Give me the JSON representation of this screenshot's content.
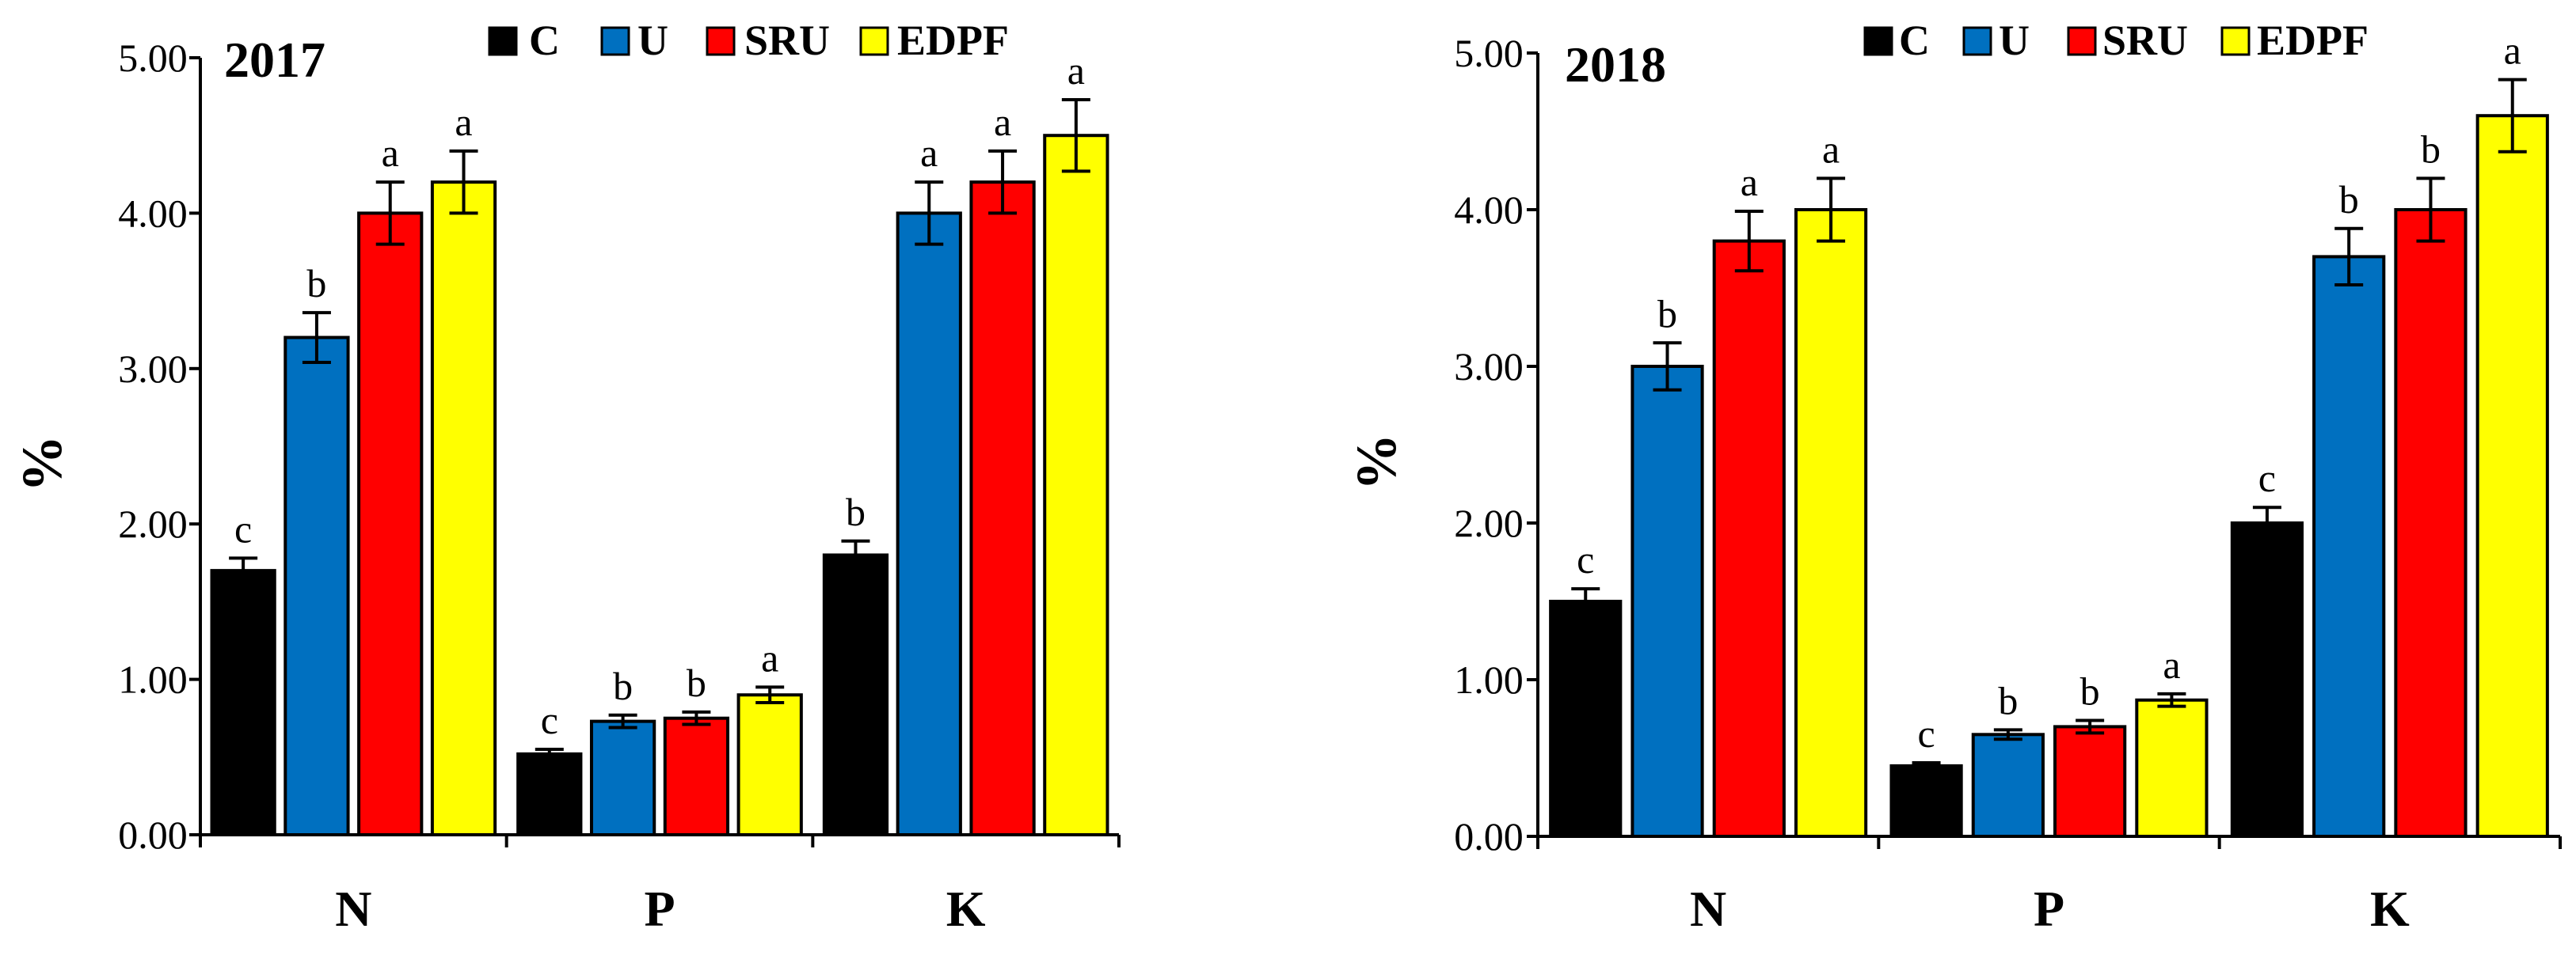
{
  "chart_data": [
    {
      "type": "bar",
      "title": "2017",
      "ylabel": "%",
      "xlabel": "",
      "ylim": [
        0,
        5
      ],
      "yticks": [
        "0.00",
        "1.00",
        "2.00",
        "3.00",
        "4.00",
        "5.00"
      ],
      "categories": [
        "N",
        "P",
        "K"
      ],
      "legend": "top",
      "series": [
        {
          "name": "C",
          "color": "#000000",
          "values": [
            1.7,
            0.52,
            1.8
          ],
          "errors": [
            0.08,
            0.03,
            0.09
          ],
          "letters": [
            "c",
            "c",
            "b"
          ]
        },
        {
          "name": "U",
          "color": "#0070C0",
          "values": [
            3.2,
            0.73,
            4.0
          ],
          "errors": [
            0.16,
            0.04,
            0.2
          ],
          "letters": [
            "b",
            "b",
            "a"
          ]
        },
        {
          "name": "SRU",
          "color": "#FF0000",
          "values": [
            4.0,
            0.75,
            4.2
          ],
          "errors": [
            0.2,
            0.04,
            0.2
          ],
          "letters": [
            "a",
            "b",
            "a"
          ]
        },
        {
          "name": "EDPF",
          "color": "#FFFF00",
          "values": [
            4.2,
            0.9,
            4.5
          ],
          "errors": [
            0.2,
            0.05,
            0.23
          ],
          "letters": [
            "a",
            "a",
            "a"
          ]
        }
      ]
    },
    {
      "type": "bar",
      "title": "2018",
      "ylabel": "%",
      "xlabel": "",
      "ylim": [
        0,
        5
      ],
      "yticks": [
        "0.00",
        "1.00",
        "2.00",
        "3.00",
        "4.00",
        "5.00"
      ],
      "categories": [
        "N",
        "P",
        "K"
      ],
      "legend": "top",
      "series": [
        {
          "name": "C",
          "color": "#000000",
          "values": [
            1.5,
            0.45,
            2.0
          ],
          "errors": [
            0.08,
            0.02,
            0.1
          ],
          "letters": [
            "c",
            "c",
            "c"
          ]
        },
        {
          "name": "U",
          "color": "#0070C0",
          "values": [
            3.0,
            0.65,
            3.7
          ],
          "errors": [
            0.15,
            0.03,
            0.18
          ],
          "letters": [
            "b",
            "b",
            "b"
          ]
        },
        {
          "name": "SRU",
          "color": "#FF0000",
          "values": [
            3.8,
            0.7,
            4.0
          ],
          "errors": [
            0.19,
            0.04,
            0.2
          ],
          "letters": [
            "a",
            "b",
            "b"
          ]
        },
        {
          "name": "EDPF",
          "color": "#FFFF00",
          "values": [
            4.0,
            0.87,
            4.6
          ],
          "errors": [
            0.2,
            0.04,
            0.23
          ],
          "letters": [
            "a",
            "a",
            "a"
          ]
        }
      ]
    }
  ]
}
